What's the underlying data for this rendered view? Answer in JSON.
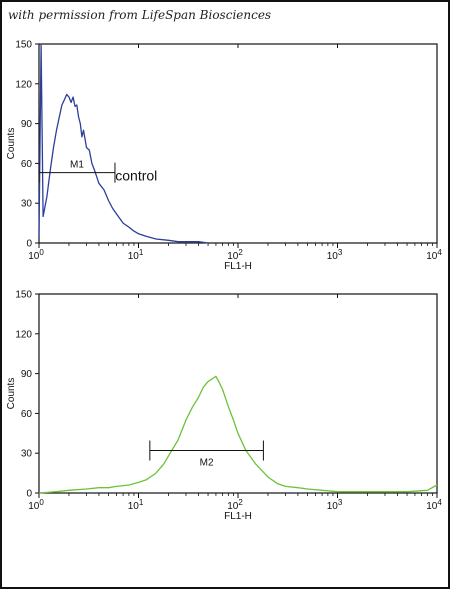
{
  "credit": "with permission from LifeSpan Biosciences",
  "colors": {
    "control": "#2b3f9a",
    "sample": "#6cc23a",
    "axis": "#111111"
  },
  "chart_data": [
    {
      "type": "line",
      "x_scale": "log",
      "xlim": [
        1,
        10000
      ],
      "ylim": [
        0,
        150
      ],
      "xlabel": "FL1-H",
      "ylabel": "Counts",
      "x_ticks": [
        {
          "base": "10",
          "exp": "0"
        },
        {
          "base": "10",
          "exp": "1"
        },
        {
          "base": "10",
          "exp": "2"
        },
        {
          "base": "10",
          "exp": "3"
        },
        {
          "base": "10",
          "exp": "4"
        }
      ],
      "y_ticks": [
        "0",
        "30",
        "60",
        "90",
        "120",
        "150"
      ],
      "y_tick_values": [
        0,
        30,
        60,
        90,
        120,
        150
      ],
      "series": [
        {
          "color": "#2b3f9a",
          "x": [
            1.0,
            1.05,
            1.1,
            1.2,
            1.3,
            1.4,
            1.5,
            1.6,
            1.7,
            1.8,
            1.9,
            2.0,
            2.1,
            2.2,
            2.3,
            2.4,
            2.5,
            2.6,
            2.7,
            2.8,
            3.0,
            3.2,
            3.4,
            3.6,
            3.8,
            4.0,
            4.5,
            5.0,
            5.5,
            6.0,
            7.0,
            8.0,
            9.0,
            10,
            12,
            15,
            20,
            25,
            30,
            40,
            50
          ],
          "y": [
            5,
            150,
            20,
            35,
            55,
            72,
            85,
            95,
            104,
            108,
            112,
            110,
            106,
            110,
            103,
            104,
            95,
            90,
            80,
            85,
            72,
            70,
            60,
            55,
            50,
            45,
            40,
            32,
            26,
            22,
            15,
            12,
            9,
            7,
            5,
            3,
            2,
            1,
            1,
            1,
            0
          ]
        }
      ],
      "gates": [
        {
          "label": "M1",
          "x_start": 1.0,
          "x_end": 5.8,
          "y": 53
        }
      ],
      "annotations": [
        {
          "text": "control",
          "x": 9.5,
          "y": 47
        }
      ]
    },
    {
      "type": "line",
      "x_scale": "log",
      "xlim": [
        1,
        10000
      ],
      "ylim": [
        0,
        150
      ],
      "xlabel": "FL1-H",
      "ylabel": "Counts",
      "x_ticks": [
        {
          "base": "10",
          "exp": "0"
        },
        {
          "base": "10",
          "exp": "1"
        },
        {
          "base": "10",
          "exp": "2"
        },
        {
          "base": "10",
          "exp": "3"
        },
        {
          "base": "10",
          "exp": "4"
        }
      ],
      "y_ticks": [
        "0",
        "30",
        "60",
        "90",
        "120",
        "150"
      ],
      "y_tick_values": [
        0,
        30,
        60,
        90,
        120,
        150
      ],
      "series": [
        {
          "color": "#6cc23a",
          "x": [
            1.0,
            1.5,
            2.0,
            3.0,
            4.0,
            5.0,
            6.0,
            8.0,
            10,
            12,
            15,
            18,
            20,
            25,
            30,
            35,
            40,
            45,
            50,
            55,
            60,
            65,
            70,
            80,
            90,
            100,
            120,
            150,
            200,
            250,
            300,
            400,
            500,
            700,
            1000,
            2000,
            5000,
            8000,
            10000
          ],
          "y": [
            0,
            1,
            2,
            3,
            4,
            4,
            5,
            6,
            8,
            10,
            15,
            22,
            28,
            40,
            55,
            65,
            72,
            80,
            84,
            86,
            88,
            83,
            78,
            65,
            55,
            45,
            32,
            22,
            12,
            7,
            5,
            4,
            3,
            2,
            1,
            1,
            1,
            2,
            6
          ]
        }
      ],
      "gates": [
        {
          "label": "M2",
          "x_start": 13,
          "x_end": 180,
          "y": 32
        }
      ],
      "annotations": []
    }
  ]
}
